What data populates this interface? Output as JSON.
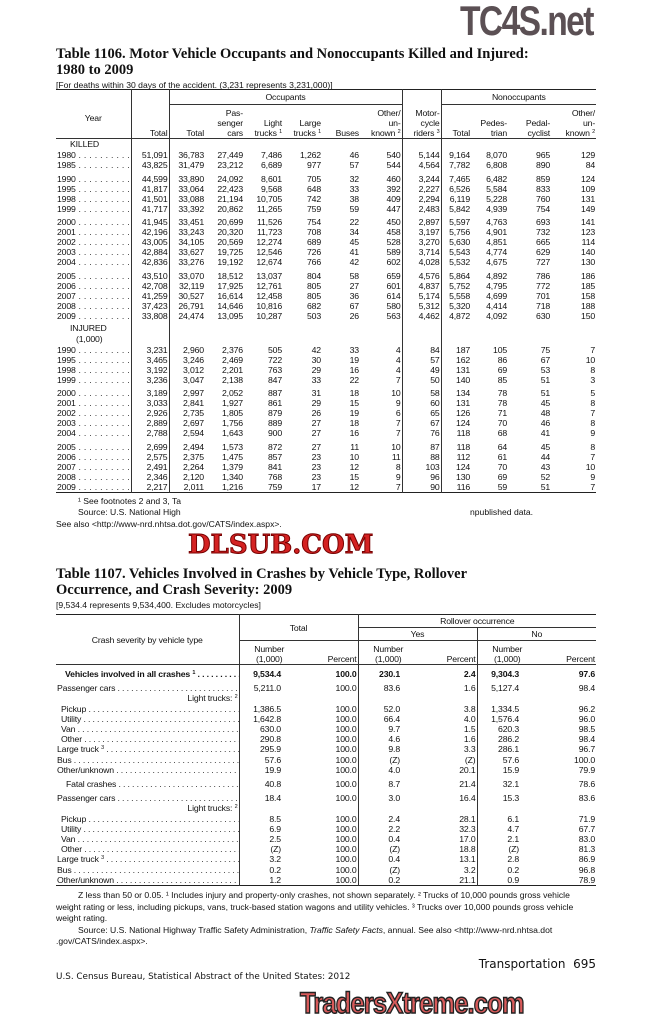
{
  "watermarks": {
    "top": "TC4S.net",
    "middle": "DLSUB.COM",
    "bottom": "TradersXtreme.com"
  },
  "table1106": {
    "title_line1": "Table 1106. Motor Vehicle Occupants and Nonoccupants Killed and Injured:",
    "title_line2": "1980 to 2009",
    "subtitle": "[For deaths within 30 days of the accident. (3,231 represents 3,231,000)]",
    "headers": {
      "year": "Year",
      "total": "Total",
      "occupants": "Occupants",
      "nonoccupants": "Nonoccupants",
      "occ_total": "Total",
      "passenger_cars": [
        "Pas-",
        "senger",
        "cars"
      ],
      "light_trucks": "Light",
      "light_trucks2": "trucks",
      "light_sup": "1",
      "large_trucks": "Large",
      "large_trucks2": "trucks",
      "large_sup": "1",
      "buses": "Buses",
      "other": [
        "Other/",
        "un-",
        "known"
      ],
      "other_sup": "2",
      "motorcycle": [
        "Motor-",
        "cycle",
        "riders"
      ],
      "motorcycle_sup": "3",
      "non_total": "Total",
      "pedestrian": [
        "Pedes-",
        "trian"
      ],
      "pedalcyclist": [
        "Pedal-",
        "cyclist"
      ],
      "non_other": [
        "Other/",
        "un-",
        "known"
      ],
      "non_other_sup": "2"
    },
    "sections": [
      {
        "label": [
          "KILLED"
        ],
        "groups": [
          [
            [
              "1980",
              "51,091",
              "36,783",
              "27,449",
              "7,486",
              "1,262",
              "46",
              "540",
              "5,144",
              "9,164",
              "8,070",
              "965",
              "129"
            ],
            [
              "1985",
              "43,825",
              "31,479",
              "23,212",
              "6,689",
              "977",
              "57",
              "544",
              "4,564",
              "7,782",
              "6,808",
              "890",
              "84"
            ]
          ],
          [
            [
              "1990",
              "44,599",
              "33,890",
              "24,092",
              "8,601",
              "705",
              "32",
              "460",
              "3,244",
              "7,465",
              "6,482",
              "859",
              "124"
            ],
            [
              "1995",
              "41,817",
              "33,064",
              "22,423",
              "9,568",
              "648",
              "33",
              "392",
              "2,227",
              "6,526",
              "5,584",
              "833",
              "109"
            ],
            [
              "1998",
              "41,501",
              "33,088",
              "21,194",
              "10,705",
              "742",
              "38",
              "409",
              "2,294",
              "6,119",
              "5,228",
              "760",
              "131"
            ],
            [
              "1999",
              "41,717",
              "33,392",
              "20,862",
              "11,265",
              "759",
              "59",
              "447",
              "2,483",
              "5,842",
              "4,939",
              "754",
              "149"
            ]
          ],
          [
            [
              "2000",
              "41,945",
              "33,451",
              "20,699",
              "11,526",
              "754",
              "22",
              "450",
              "2,897",
              "5,597",
              "4,763",
              "693",
              "141"
            ],
            [
              "2001",
              "42,196",
              "33,243",
              "20,320",
              "11,723",
              "708",
              "34",
              "458",
              "3,197",
              "5,756",
              "4,901",
              "732",
              "123"
            ],
            [
              "2002",
              "43,005",
              "34,105",
              "20,569",
              "12,274",
              "689",
              "45",
              "528",
              "3,270",
              "5,630",
              "4,851",
              "665",
              "114"
            ],
            [
              "2003",
              "42,884",
              "33,627",
              "19,725",
              "12,546",
              "726",
              "41",
              "589",
              "3,714",
              "5,543",
              "4,774",
              "629",
              "140"
            ],
            [
              "2004",
              "42,836",
              "33,276",
              "19,192",
              "12,674",
              "766",
              "42",
              "602",
              "4,028",
              "5,532",
              "4,675",
              "727",
              "130"
            ]
          ],
          [
            [
              "2005",
              "43,510",
              "33,070",
              "18,512",
              "13,037",
              "804",
              "58",
              "659",
              "4,576",
              "5,864",
              "4,892",
              "786",
              "186"
            ],
            [
              "2006",
              "42,708",
              "32,119",
              "17,925",
              "12,761",
              "805",
              "27",
              "601",
              "4,837",
              "5,752",
              "4,795",
              "772",
              "185"
            ],
            [
              "2007",
              "41,259",
              "30,527",
              "16,614",
              "12,458",
              "805",
              "36",
              "614",
              "5,174",
              "5,558",
              "4,699",
              "701",
              "158"
            ],
            [
              "2008",
              "37,423",
              "26,791",
              "14,646",
              "10,816",
              "682",
              "67",
              "580",
              "5,312",
              "5,320",
              "4,414",
              "718",
              "188"
            ],
            [
              "2009",
              "33,808",
              "24,474",
              "13,095",
              "10,287",
              "503",
              "26",
              "563",
              "4,462",
              "4,872",
              "4,092",
              "630",
              "150"
            ]
          ]
        ]
      },
      {
        "label": [
          "INJURED",
          "(1,000)"
        ],
        "groups": [
          [
            [
              "1990",
              "3,231",
              "2,960",
              "2,376",
              "505",
              "42",
              "33",
              "4",
              "84",
              "187",
              "105",
              "75",
              "7"
            ],
            [
              "1995",
              "3,465",
              "3,246",
              "2,469",
              "722",
              "30",
              "19",
              "4",
              "57",
              "162",
              "86",
              "67",
              "10"
            ],
            [
              "1998",
              "3,192",
              "3,012",
              "2,201",
              "763",
              "29",
              "16",
              "4",
              "49",
              "131",
              "69",
              "53",
              "8"
            ],
            [
              "1999",
              "3,236",
              "3,047",
              "2,138",
              "847",
              "33",
              "22",
              "7",
              "50",
              "140",
              "85",
              "51",
              "3"
            ]
          ],
          [
            [
              "2000",
              "3,189",
              "2,997",
              "2,052",
              "887",
              "31",
              "18",
              "10",
              "58",
              "134",
              "78",
              "51",
              "5"
            ],
            [
              "2001",
              "3,033",
              "2,841",
              "1,927",
              "861",
              "29",
              "15",
              "9",
              "60",
              "131",
              "78",
              "45",
              "8"
            ],
            [
              "2002",
              "2,926",
              "2,735",
              "1,805",
              "879",
              "26",
              "19",
              "6",
              "65",
              "126",
              "71",
              "48",
              "7"
            ],
            [
              "2003",
              "2,889",
              "2,697",
              "1,756",
              "889",
              "27",
              "18",
              "7",
              "67",
              "124",
              "70",
              "46",
              "8"
            ],
            [
              "2004",
              "2,788",
              "2,594",
              "1,643",
              "900",
              "27",
              "16",
              "7",
              "76",
              "118",
              "68",
              "41",
              "9"
            ]
          ],
          [
            [
              "2005",
              "2,699",
              "2,494",
              "1,573",
              "872",
              "27",
              "11",
              "10",
              "87",
              "118",
              "64",
              "45",
              "8"
            ],
            [
              "2006",
              "2,575",
              "2,375",
              "1,475",
              "857",
              "23",
              "10",
              "11",
              "88",
              "112",
              "61",
              "44",
              "7"
            ],
            [
              "2007",
              "2,491",
              "2,264",
              "1,379",
              "841",
              "23",
              "12",
              "8",
              "103",
              "124",
              "70",
              "43",
              "10"
            ],
            [
              "2008",
              "2,346",
              "2,120",
              "1,340",
              "768",
              "23",
              "15",
              "9",
              "96",
              "130",
              "69",
              "52",
              "9"
            ],
            [
              "2009",
              "2,217",
              "2,011",
              "1,216",
              "759",
              "17",
              "12",
              "7",
              "90",
              "116",
              "59",
              "51",
              "7"
            ]
          ]
        ]
      }
    ],
    "footnote1": "¹ See footnotes 2 and 3, Ta",
    "source": "Source: U.S. National High",
    "source_end": "npublished data.",
    "see_also": "See also <http://www-nrd.nhtsa.dot.gov/CATS/index.aspx>."
  },
  "table1107": {
    "title_line1": "Table 1107. Vehicles Involved in Crashes by Vehicle Type, Rollover",
    "title_line2": "Occurrence, and Crash Severity: 2009",
    "subtitle": "[9,534.4 represents 9,534,400. Excludes motorcycles]",
    "headers": {
      "stub": "Crash severity by vehicle type",
      "total": "Total",
      "rollover": "Rollover occurrence",
      "yes": "Yes",
      "no": "No",
      "number": "Number",
      "unit": "(1,000)",
      "percent": "Percent"
    },
    "rows": [
      {
        "label": "Vehicles involved in all crashes",
        "sup": "1",
        "bold": true,
        "indent": 1,
        "values": [
          "9,534.4",
          "100.0",
          "230.1",
          "2.4",
          "9,304.3",
          "97.6"
        ]
      },
      {
        "label": "Passenger cars",
        "gap": true,
        "values": [
          "5,211.0",
          "100.0",
          "83.6",
          "1.6",
          "5,127.4",
          "98.4"
        ]
      },
      {
        "label": "Light trucks:",
        "sup": "2",
        "nodots": true,
        "values": []
      },
      {
        "label": "Pickup",
        "indent": 1,
        "values": [
          "1,386.5",
          "100.0",
          "52.0",
          "3.8",
          "1,334.5",
          "96.2"
        ]
      },
      {
        "label": "Utility",
        "indent": 1,
        "values": [
          "1,642.8",
          "100.0",
          "66.4",
          "4.0",
          "1,576.4",
          "96.0"
        ]
      },
      {
        "label": "Van",
        "indent": 1,
        "values": [
          "630.0",
          "100.0",
          "9.7",
          "1.5",
          "620.3",
          "98.5"
        ]
      },
      {
        "label": "Other",
        "indent": 1,
        "values": [
          "290.8",
          "100.0",
          "4.6",
          "1.6",
          "286.2",
          "98.4"
        ]
      },
      {
        "label": "Large truck",
        "sup": "3",
        "values": [
          "295.9",
          "100.0",
          "9.8",
          "3.3",
          "286.1",
          "96.7"
        ]
      },
      {
        "label": "Bus",
        "values": [
          "57.6",
          "100.0",
          "(Z)",
          "(Z)",
          "57.6",
          "100.0"
        ]
      },
      {
        "label": "Other/unknown",
        "values": [
          "19.9",
          "100.0",
          "4.0",
          "20.1",
          "15.9",
          "79.9"
        ]
      },
      {
        "label": "Fatal crashes",
        "indent": 2,
        "gap": true,
        "values": [
          "40.8",
          "100.0",
          "8.7",
          "21.4",
          "32.1",
          "78.6"
        ]
      },
      {
        "label": "Passenger cars",
        "gap": true,
        "values": [
          "18.4",
          "100.0",
          "3.0",
          "16.4",
          "15.3",
          "83.6"
        ]
      },
      {
        "label": "Light trucks:",
        "sup": "2",
        "nodots": true,
        "values": []
      },
      {
        "label": "Pickup",
        "indent": 1,
        "values": [
          "8.5",
          "100.0",
          "2.4",
          "28.1",
          "6.1",
          "71.9"
        ]
      },
      {
        "label": "Utility",
        "indent": 1,
        "values": [
          "6.9",
          "100.0",
          "2.2",
          "32.3",
          "4.7",
          "67.7"
        ]
      },
      {
        "label": "Van",
        "indent": 1,
        "values": [
          "2.5",
          "100.0",
          "0.4",
          "17.0",
          "2.1",
          "83.0"
        ]
      },
      {
        "label": "Other",
        "indent": 1,
        "values": [
          "(Z)",
          "100.0",
          "(Z)",
          "18.8",
          "(Z)",
          "81.3"
        ]
      },
      {
        "label": "Large truck",
        "sup": "3",
        "values": [
          "3.2",
          "100.0",
          "0.4",
          "13.1",
          "2.8",
          "86.9"
        ]
      },
      {
        "label": "Bus",
        "values": [
          "0.2",
          "100.0",
          "(Z)",
          "3.2",
          "0.2",
          "96.8"
        ]
      },
      {
        "label": "Other/unknown",
        "values": [
          "1.2",
          "100.0",
          "0.2",
          "21.1",
          "0.9",
          "78.9"
        ]
      }
    ],
    "footnotes": "Z less than 50 or 0.05. ¹ Includes injury and property-only crashes, not shown separately. ² Trucks of 10,000 pounds gross vehicle weight rating or less, including pickups, vans, truck-based station wagons and utility vehicles. ³ Trucks over 10,000 pounds gross vehicle weight rating.",
    "source_pre": "Source: U.S. National Highway Traffic Safety Administration, ",
    "source_italic": "Traffic Safety Facts",
    "source_post": ", annual. See also <http://www-nrd.nhtsa.dot .gov/CATS/index.aspx>."
  },
  "footer": {
    "section": "Transportation",
    "page": "695",
    "publication": "U.S. Census Bureau, Statistical Abstract of the United States: 2012"
  }
}
